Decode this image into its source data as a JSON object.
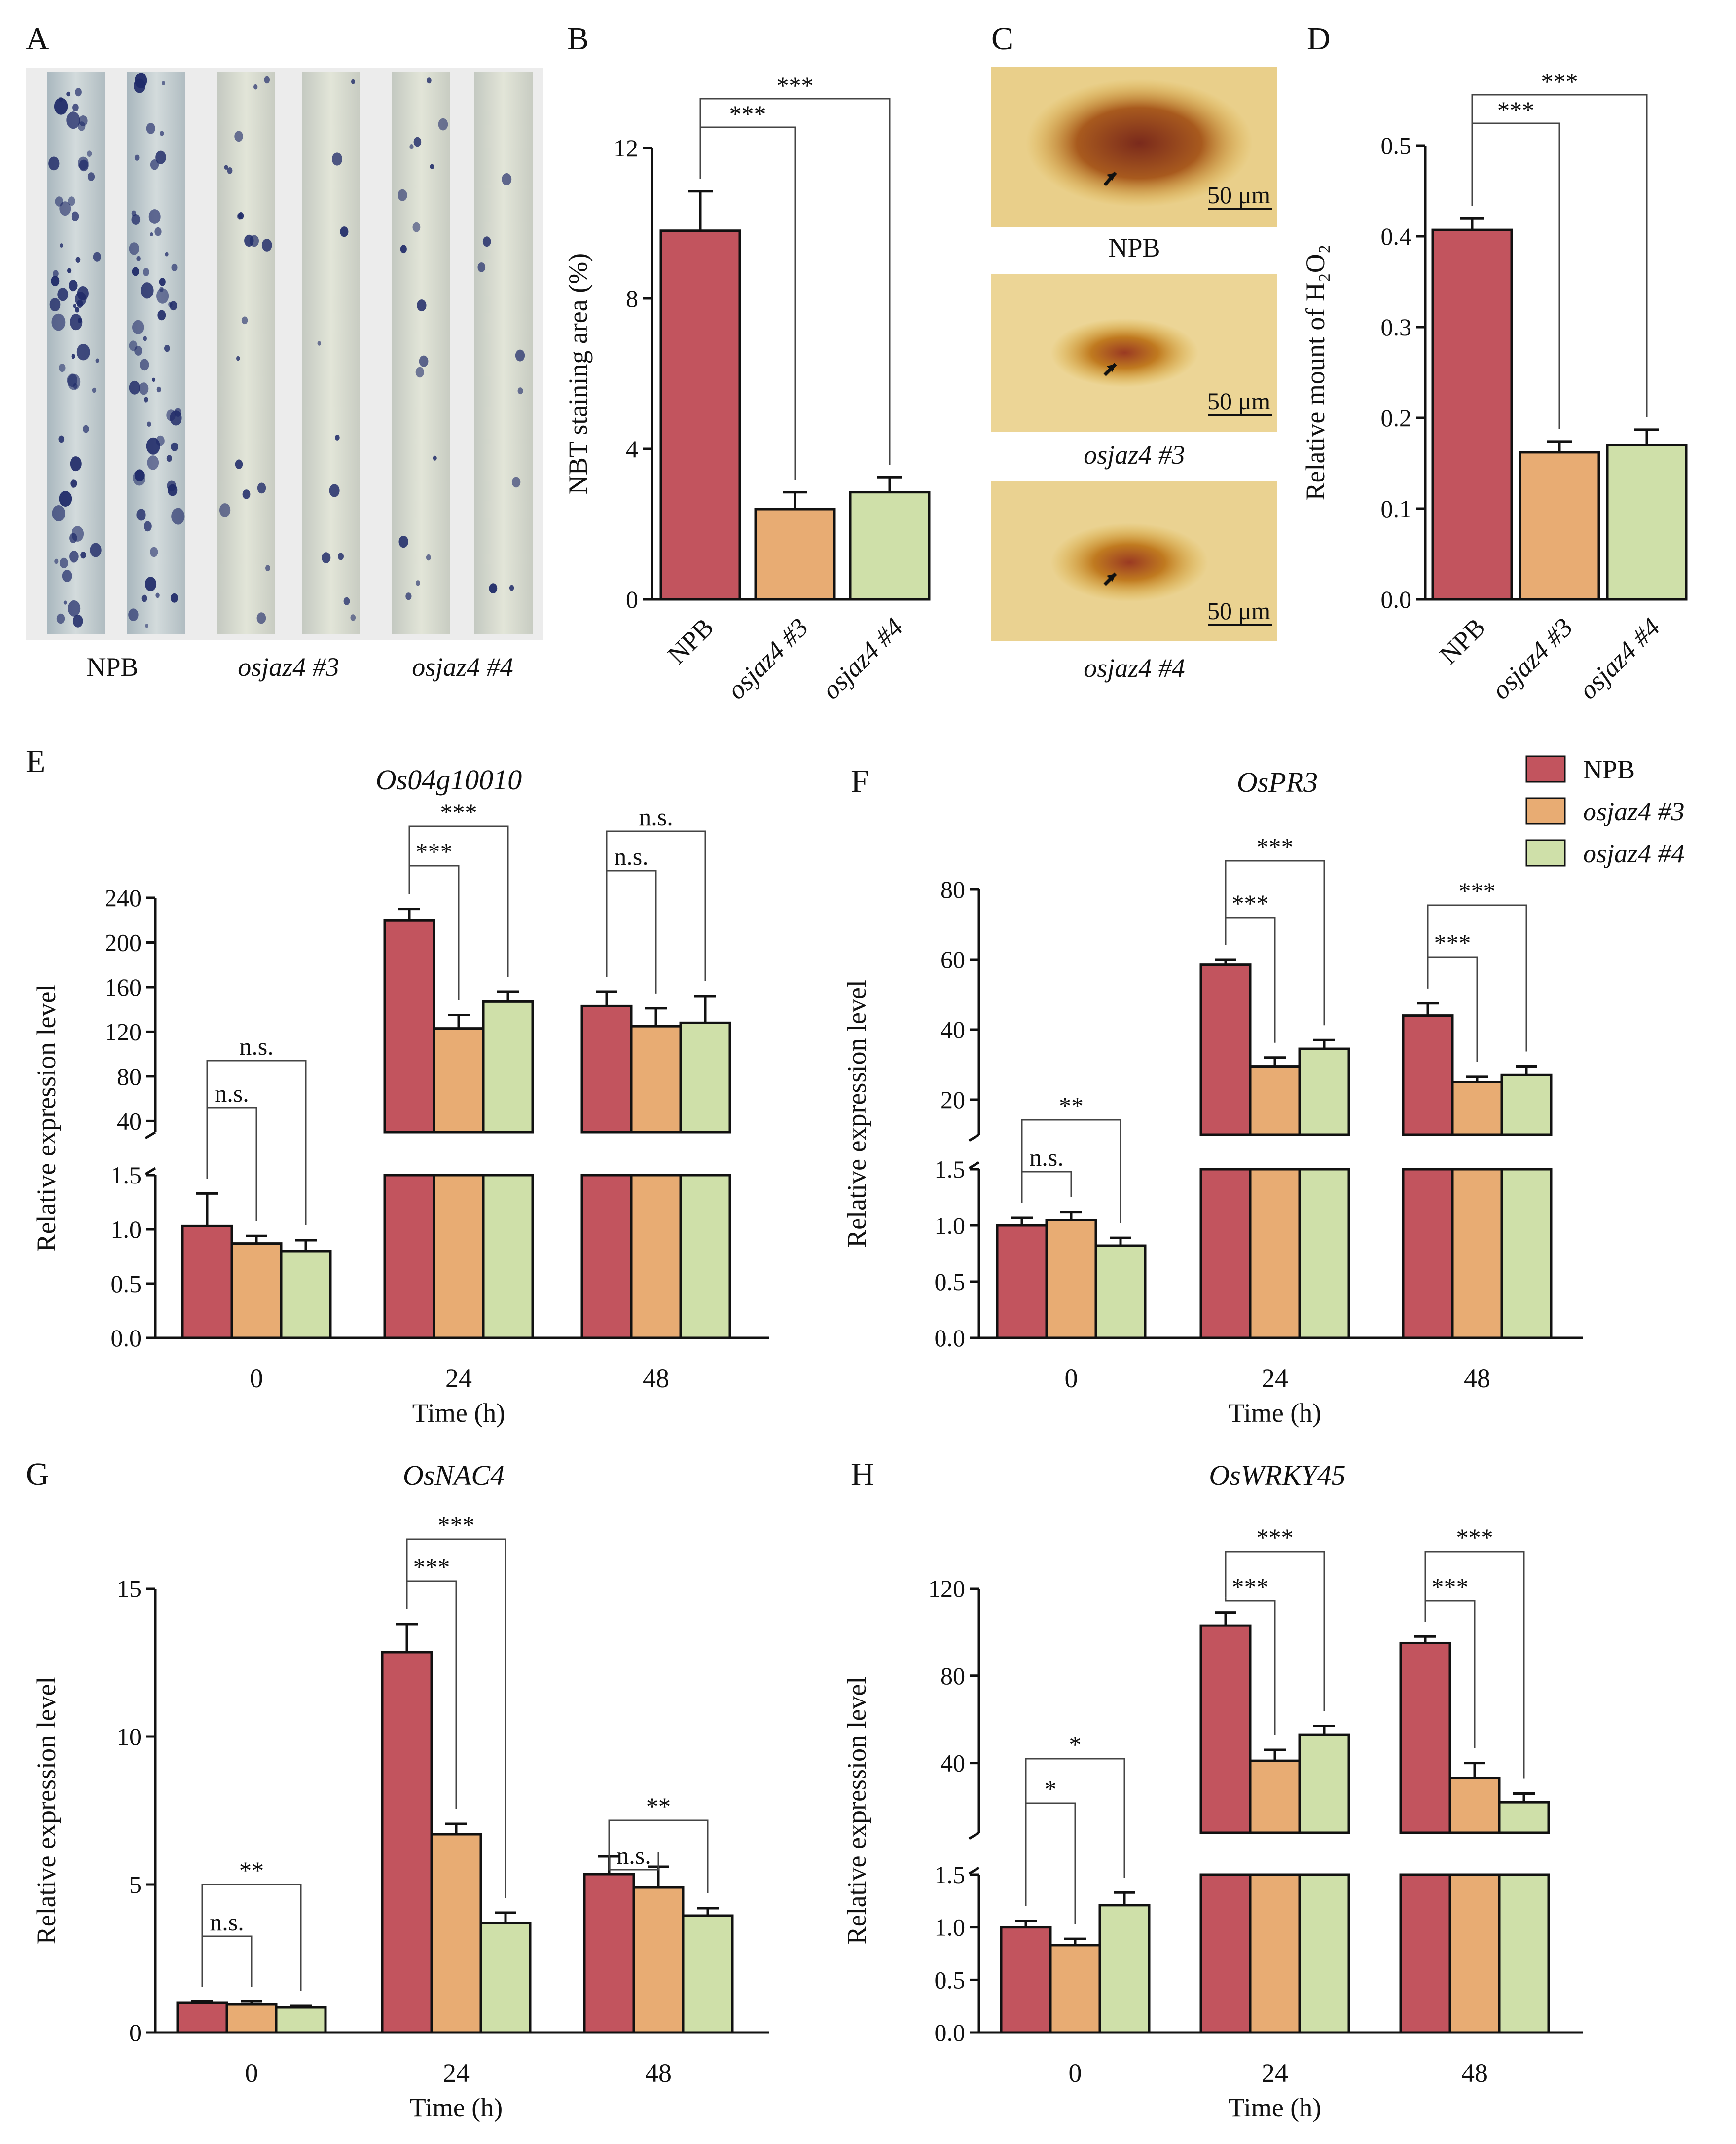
{
  "colors": {
    "NPB": "#c2545e",
    "osjaz4 #3": "#e8ac73",
    "osjaz4 #4": "#cfe0a9",
    "axis": "#111111"
  },
  "legend": {
    "items": [
      "NPB",
      "osjaz4 #3",
      "osjaz4 #4"
    ]
  },
  "panel_labels": {
    "A": "A",
    "B": "B",
    "C": "C",
    "D": "D",
    "E": "E",
    "F": "F",
    "G": "G",
    "H": "H"
  },
  "panel_a": {
    "labels": [
      "NPB",
      "osjaz4 #3",
      "osjaz4 #4"
    ]
  },
  "panel_c": {
    "labels": [
      "NPB",
      "osjaz4 #3",
      "osjaz4 #4"
    ],
    "scale_bar": "50 μm"
  },
  "chart_data": [
    {
      "id": "B",
      "type": "bar",
      "ylabel": "NBT staining area (%)",
      "ylim": [
        0,
        12
      ],
      "yticks": [
        "0",
        "4",
        "8",
        "12"
      ],
      "categories": [
        "NPB",
        "osjaz4 #3",
        "osjaz4 #4"
      ],
      "values": [
        9.8,
        2.4,
        2.85
      ],
      "errors": [
        1.05,
        0.45,
        0.4
      ],
      "significance": [
        {
          "pair": [
            0,
            1
          ],
          "label": "***"
        },
        {
          "pair": [
            0,
            2
          ],
          "label": "***"
        }
      ]
    },
    {
      "id": "D",
      "type": "bar",
      "ylabel": "Relative mount of H₂O₂",
      "ylim": [
        0,
        0.5
      ],
      "yticks": [
        "0.0",
        "0.1",
        "0.2",
        "0.3",
        "0.4",
        "0.5"
      ],
      "categories": [
        "NPB",
        "osjaz4 #3",
        "osjaz4 #4"
      ],
      "values": [
        0.407,
        0.162,
        0.17
      ],
      "errors": [
        0.013,
        0.012,
        0.017
      ],
      "significance": [
        {
          "pair": [
            0,
            1
          ],
          "label": "***"
        },
        {
          "pair": [
            0,
            2
          ],
          "label": "***"
        }
      ]
    },
    {
      "id": "E",
      "type": "bar",
      "title": "Os04g10010",
      "xlabel": "Time (h)",
      "ylabel": "Relative expression level",
      "categories": [
        "0",
        "24",
        "48"
      ],
      "series": [
        {
          "name": "NPB",
          "values": [
            1.03,
            220,
            143
          ],
          "errors": [
            0.3,
            10,
            13
          ]
        },
        {
          "name": "osjaz4 #3",
          "values": [
            0.87,
            123,
            125
          ],
          "errors": [
            0.07,
            12,
            16
          ]
        },
        {
          "name": "osjaz4 #4",
          "values": [
            0.8,
            147,
            128
          ],
          "errors": [
            0.1,
            9,
            24
          ]
        }
      ],
      "lower_ylim": [
        0,
        1.5
      ],
      "lower_yticks": [
        "0.0",
        "0.5",
        "1.0",
        "1.5"
      ],
      "upper_ylim": [
        30,
        240
      ],
      "upper_yticks": [
        "40",
        "80",
        "120",
        "160",
        "200",
        "240"
      ],
      "significance": [
        {
          "group": 0,
          "pair": [
            0,
            1
          ],
          "label": "n.s."
        },
        {
          "group": 0,
          "pair": [
            0,
            2
          ],
          "label": "n.s."
        },
        {
          "group": 1,
          "pair": [
            0,
            1
          ],
          "label": "***"
        },
        {
          "group": 1,
          "pair": [
            0,
            2
          ],
          "label": "***"
        },
        {
          "group": 2,
          "pair": [
            0,
            1
          ],
          "label": "n.s."
        },
        {
          "group": 2,
          "pair": [
            0,
            2
          ],
          "label": "n.s."
        }
      ]
    },
    {
      "id": "F",
      "type": "bar",
      "title": "OsPR3",
      "xlabel": "Time (h)",
      "ylabel": "Relative expression level",
      "categories": [
        "0",
        "24",
        "48"
      ],
      "series": [
        {
          "name": "NPB",
          "values": [
            1.0,
            58.5,
            44
          ],
          "errors": [
            0.07,
            1.5,
            3.5
          ]
        },
        {
          "name": "osjaz4 #3",
          "values": [
            1.05,
            29.5,
            25
          ],
          "errors": [
            0.07,
            2.5,
            1.5
          ]
        },
        {
          "name": "osjaz4 #4",
          "values": [
            0.82,
            34.5,
            27
          ],
          "errors": [
            0.07,
            2.5,
            2.5
          ]
        }
      ],
      "lower_ylim": [
        0,
        1.5
      ],
      "lower_yticks": [
        "0.0",
        "0.5",
        "1.0",
        "1.5"
      ],
      "upper_ylim": [
        10,
        80
      ],
      "upper_yticks": [
        "20",
        "40",
        "60",
        "80"
      ],
      "significance": [
        {
          "group": 0,
          "pair": [
            0,
            1
          ],
          "label": "n.s."
        },
        {
          "group": 0,
          "pair": [
            0,
            2
          ],
          "label": "**"
        },
        {
          "group": 1,
          "pair": [
            0,
            1
          ],
          "label": "***"
        },
        {
          "group": 1,
          "pair": [
            0,
            2
          ],
          "label": "***"
        },
        {
          "group": 2,
          "pair": [
            0,
            1
          ],
          "label": "***"
        },
        {
          "group": 2,
          "pair": [
            0,
            2
          ],
          "label": "***"
        }
      ]
    },
    {
      "id": "G",
      "type": "bar",
      "title": "OsNAC4",
      "xlabel": "Time (h)",
      "ylabel": "Relative expression level",
      "categories": [
        "0",
        "24",
        "48"
      ],
      "series": [
        {
          "name": "NPB",
          "values": [
            1.0,
            12.85,
            5.35
          ],
          "errors": [
            0.05,
            0.95,
            0.6
          ]
        },
        {
          "name": "osjaz4 #3",
          "values": [
            0.95,
            6.7,
            4.9
          ],
          "errors": [
            0.1,
            0.35,
            0.7
          ]
        },
        {
          "name": "osjaz4 #4",
          "values": [
            0.85,
            3.7,
            3.95
          ],
          "errors": [
            0.05,
            0.35,
            0.25
          ]
        }
      ],
      "ylim": [
        0,
        15
      ],
      "yticks": [
        "0",
        "5",
        "10",
        "15"
      ],
      "significance": [
        {
          "group": 0,
          "pair": [
            0,
            1
          ],
          "label": "n.s."
        },
        {
          "group": 0,
          "pair": [
            0,
            2
          ],
          "label": "**"
        },
        {
          "group": 1,
          "pair": [
            0,
            1
          ],
          "label": "***"
        },
        {
          "group": 1,
          "pair": [
            0,
            2
          ],
          "label": "***"
        },
        {
          "group": 2,
          "pair": [
            0,
            1
          ],
          "label": "n.s."
        },
        {
          "group": 2,
          "pair": [
            0,
            2
          ],
          "label": "**"
        }
      ]
    },
    {
      "id": "H",
      "type": "bar",
      "title": "OsWRKY45",
      "xlabel": "Time (h)",
      "ylabel": "Relative expression level",
      "categories": [
        "0",
        "24",
        "48"
      ],
      "series": [
        {
          "name": "NPB",
          "values": [
            1.0,
            103,
            95
          ],
          "errors": [
            0.06,
            6,
            3
          ]
        },
        {
          "name": "osjaz4 #3",
          "values": [
            0.83,
            41,
            33
          ],
          "errors": [
            0.06,
            5,
            7
          ]
        },
        {
          "name": "osjaz4 #4",
          "values": [
            1.21,
            53,
            22
          ],
          "errors": [
            0.12,
            4,
            4
          ]
        }
      ],
      "lower_ylim": [
        0,
        1.5
      ],
      "lower_yticks": [
        "0.0",
        "0.5",
        "1.0",
        "1.5"
      ],
      "upper_ylim": [
        8,
        120
      ],
      "upper_yticks": [
        "40",
        "80",
        "120"
      ],
      "significance": [
        {
          "group": 0,
          "pair": [
            0,
            1
          ],
          "label": "*"
        },
        {
          "group": 0,
          "pair": [
            0,
            2
          ],
          "label": "*"
        },
        {
          "group": 1,
          "pair": [
            0,
            1
          ],
          "label": "***"
        },
        {
          "group": 1,
          "pair": [
            0,
            2
          ],
          "label": "***"
        },
        {
          "group": 2,
          "pair": [
            0,
            1
          ],
          "label": "***"
        },
        {
          "group": 2,
          "pair": [
            0,
            2
          ],
          "label": "***"
        }
      ]
    }
  ]
}
